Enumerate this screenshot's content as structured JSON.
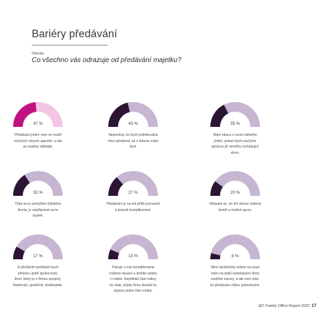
{
  "header": {
    "title": "Bariéry předávání",
    "question_label": "Otázka:",
    "question": "Co všechno vás odrazuje od předávání majetku?"
  },
  "colors": {
    "first_fill": "#c0127f",
    "first_track": "#f2c6e2",
    "fill": "#2b1533",
    "track": "#c6b6d2"
  },
  "items": [
    {
      "percent": 47,
      "label": "47 %",
      "text": [
        "Předávání jmění není ve rozdíl",
        "od jiných věcech ujasněn, a tak",
        "se snadno odkládá."
      ]
    },
    {
      "percent": 43,
      "label": "43 %",
      "text": [
        "Nepociťuji, že bych potřeboval/a",
        "něco předávat, až o dobrou mám",
        "dost."
      ]
    },
    {
      "percent": 35,
      "label": "35 %",
      "text": [
        "Mám obavu o osud rodiného",
        "jmění, pokud bych nad jeho",
        "správou již neměl/a rozhodující",
        "slovo."
      ]
    },
    {
      "percent": 32,
      "label": "32 %",
      "text": [
        "Týká se to pomýšlení blízkého",
        "života, je nepříjemné na to",
        "myslet."
      ]
    },
    {
      "percent": 27,
      "label": "27 %",
      "text": [
        "Předávání je na mě příliš procesně",
        "a právně komplikované."
      ]
    },
    {
      "percent": 20,
      "label": "20 %",
      "text": [
        "Obávám se, že tím ohrozí rodinná",
        "téměř a možné spory."
      ]
    },
    {
      "percent": 17,
      "label": "17 %",
      "text": [
        "S předáním pomlkání bych",
        "přišel/a i ještě spolecnosti,",
        "život, který je s firmou spojený,",
        "kliednosti, společně, dodávatele."
      ]
    },
    {
      "percent": 13,
      "label": "13 %",
      "text": [
        "Panuje u nás komplikovaná",
        "rodinná situace a složité vztahy",
        "v rodině. Nepřiklád část rodiny",
        "by však, kdyby firmu dostali ho",
        "stejnou jeden člen rodiny."
      ]
    },
    {
      "percent": 8,
      "label": "8 %",
      "text": [
        "Mezi společníky máme na osud",
        "nebo na další nečekaných firmy",
        "rozdílné názory, a tak není otáz-",
        "ko předávání vůbec jednoduché."
      ]
    }
  ],
  "footer": {
    "text": "J&T Family Office Report 2022",
    "page": "17"
  }
}
